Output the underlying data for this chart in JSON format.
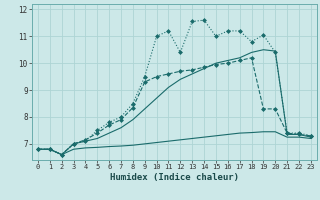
{
  "xlabel": "Humidex (Indice chaleur)",
  "background_color": "#cce8e8",
  "grid_color": "#aed4d4",
  "line_color": "#1a6b6b",
  "x_values": [
    0,
    1,
    2,
    3,
    4,
    5,
    6,
    7,
    8,
    9,
    10,
    11,
    12,
    13,
    14,
    15,
    16,
    17,
    18,
    19,
    20,
    21,
    22,
    23
  ],
  "line_dotted": [
    6.8,
    6.8,
    6.6,
    7.0,
    7.1,
    7.5,
    7.8,
    8.0,
    8.5,
    9.5,
    11.0,
    11.2,
    10.4,
    11.55,
    11.6,
    11.0,
    11.2,
    11.2,
    10.8,
    11.05,
    10.4,
    7.4,
    7.4,
    7.3
  ],
  "line_solid_upper": [
    6.8,
    6.8,
    6.6,
    7.0,
    7.1,
    7.2,
    7.4,
    7.6,
    7.9,
    8.3,
    8.7,
    9.1,
    9.4,
    9.6,
    9.8,
    10.0,
    10.1,
    10.2,
    10.4,
    10.5,
    10.45,
    7.35,
    7.35,
    7.25
  ],
  "line_dashed": [
    6.8,
    6.8,
    6.6,
    7.0,
    7.15,
    7.4,
    7.7,
    7.9,
    8.35,
    9.3,
    9.5,
    9.6,
    9.7,
    9.75,
    9.85,
    9.95,
    10.0,
    10.1,
    10.2,
    8.3,
    8.3,
    7.4,
    7.35,
    7.3
  ],
  "line_flat": [
    6.8,
    6.8,
    6.6,
    6.8,
    6.85,
    6.87,
    6.9,
    6.92,
    6.95,
    7.0,
    7.05,
    7.1,
    7.15,
    7.2,
    7.25,
    7.3,
    7.35,
    7.4,
    7.42,
    7.45,
    7.45,
    7.25,
    7.25,
    7.2
  ],
  "ylim": [
    6.4,
    12.2
  ],
  "xlim": [
    -0.5,
    23.5
  ],
  "yticks": [
    7,
    8,
    9,
    10,
    11,
    12
  ],
  "xticks": [
    0,
    1,
    2,
    3,
    4,
    5,
    6,
    7,
    8,
    9,
    10,
    11,
    12,
    13,
    14,
    15,
    16,
    17,
    18,
    19,
    20,
    21,
    22,
    23
  ]
}
